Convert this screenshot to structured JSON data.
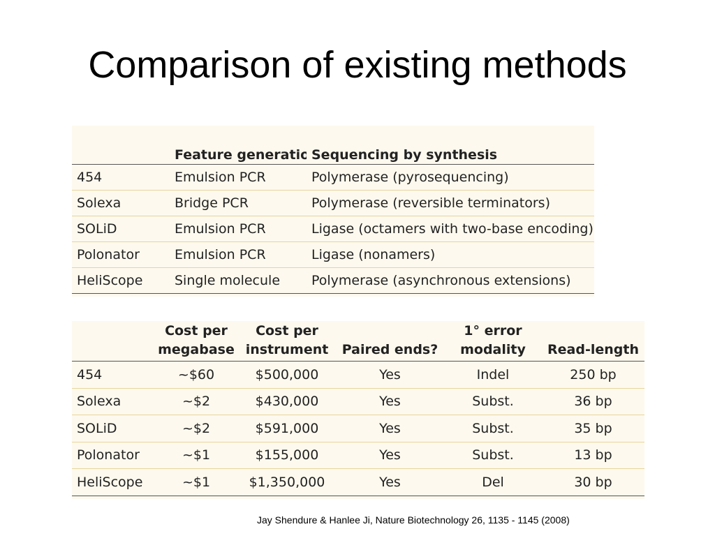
{
  "title": "Comparison of existing methods",
  "table1": {
    "headers": [
      "",
      "Feature generation",
      "Sequencing by synthesis"
    ],
    "rows": [
      [
        "454",
        "Emulsion PCR",
        "Polymerase (pyrosequencing)"
      ],
      [
        "Solexa",
        "Bridge PCR",
        "Polymerase (reversible terminators)"
      ],
      [
        "SOLiD",
        "Emulsion PCR",
        "Ligase (octamers with two-base encoding)"
      ],
      [
        "Polonator",
        "Emulsion PCR",
        "Ligase (nonamers)"
      ],
      [
        "HeliScope",
        "Single molecule",
        "Polymerase (asynchronous extensions)"
      ]
    ]
  },
  "table2": {
    "headers": [
      {
        "line1": "",
        "line2": ""
      },
      {
        "line1": "Cost per",
        "line2": "megabase"
      },
      {
        "line1": "Cost per",
        "line2": "instrument"
      },
      {
        "line1": "",
        "line2": "Paired ends?"
      },
      {
        "line1": "1° error",
        "line2": "modality"
      },
      {
        "line1": "",
        "line2": "Read-length"
      }
    ],
    "rows": [
      [
        "454",
        "~$60",
        "$500,000",
        "Yes",
        "Indel",
        "250 bp"
      ],
      [
        "Solexa",
        "~$2",
        "$430,000",
        "Yes",
        "Subst.",
        "36 bp"
      ],
      [
        "SOLiD",
        "~$2",
        "$591,000",
        "Yes",
        "Subst.",
        "35 bp"
      ],
      [
        "Polonator",
        "~$1",
        "$155,000",
        "Yes",
        "Subst.",
        "13 bp"
      ],
      [
        "HeliScope",
        "~$1",
        "$1,350,000",
        "Yes",
        "Del",
        "30 bp"
      ]
    ]
  },
  "citation": "Jay Shendure & Hanlee Ji, Nature Biotechnology 26, 1135 - 1145 (2008)",
  "colors": {
    "panel_background": "#fdf9ee",
    "row_rule": "#e7d49c",
    "header_rule": "#555555"
  }
}
